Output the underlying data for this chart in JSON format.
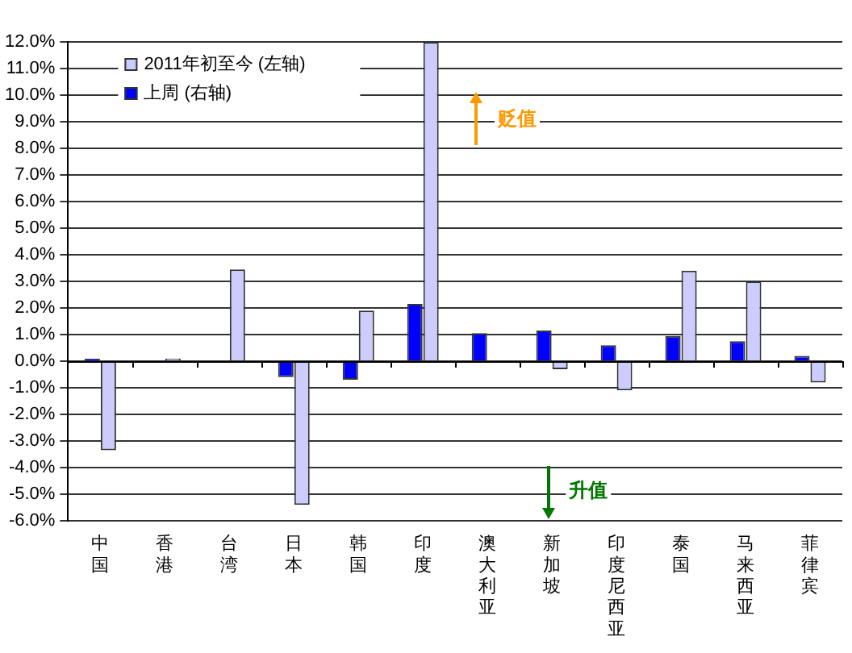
{
  "chart_data": {
    "type": "bar",
    "categories": [
      "中国",
      "香港",
      "台湾",
      "日本",
      "韩国",
      "印度",
      "澳大利亚",
      "新加坡",
      "印度尼西亚",
      "泰国",
      "马来西亚",
      "菲律宾"
    ],
    "series": [
      {
        "name": "2011年初至今 (左轴)",
        "color": "#ccccff",
        "values": [
          -3.35,
          0.1,
          3.45,
          -5.4,
          1.9,
          12.0,
          null,
          -0.3,
          -1.1,
          3.4,
          3.0,
          -0.8
        ]
      },
      {
        "name": "上周 (右轴)",
        "color": "#0000ff",
        "values": [
          0.1,
          null,
          null,
          -0.6,
          -0.7,
          2.15,
          1.05,
          1.15,
          0.6,
          0.95,
          0.75,
          0.2
        ]
      }
    ],
    "ylim": [
      -6,
      12
    ],
    "yticks": [
      {
        "value": -6,
        "label": "-6.0%"
      },
      {
        "value": -5,
        "label": "-5.0%"
      },
      {
        "value": -4,
        "label": "-4.0%"
      },
      {
        "value": -3,
        "label": "-3.0%"
      },
      {
        "value": -2,
        "label": "-2.0%"
      },
      {
        "value": -1,
        "label": "-1.0%"
      },
      {
        "value": 0,
        "label": "0.0%"
      },
      {
        "value": 1,
        "label": "1.0%"
      },
      {
        "value": 2,
        "label": "2.0%"
      },
      {
        "value": 3,
        "label": "3.0%"
      },
      {
        "value": 4,
        "label": "4.0%"
      },
      {
        "value": 5,
        "label": "5.0%"
      },
      {
        "value": 6,
        "label": "6.0%"
      },
      {
        "value": 7,
        "label": "7.0%"
      },
      {
        "value": 8,
        "label": "8.0%"
      },
      {
        "value": 9,
        "label": "9.0%"
      },
      {
        "value": 10,
        "label": "10.0%"
      },
      {
        "value": 11,
        "label": "11.0%"
      },
      {
        "value": 12,
        "label": "12.0%"
      }
    ],
    "annotations": [
      "贬值",
      "升值"
    ],
    "grid": "y",
    "legend": "top left"
  }
}
